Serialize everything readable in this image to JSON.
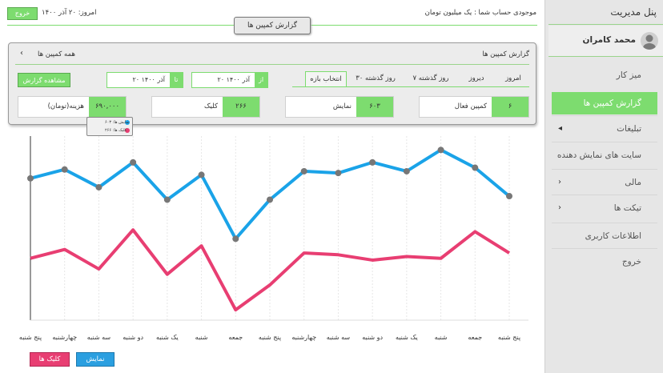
{
  "header": {
    "logout": "خروج",
    "today": "امروز: ۲۰ آذر ۱۴۰۰",
    "balance": "موجودی حساب شما : یک میلیون تومان",
    "tab": "گزارش کمپین ها"
  },
  "sidebar": {
    "title": "پنل مدیریت",
    "user": "محمد کامران",
    "items": [
      {
        "label": "میز کار",
        "arrow": ""
      },
      {
        "label": "گزارش کمپین ها",
        "arrow": ""
      },
      {
        "label": "تبلیغات",
        "arrow": "◂"
      },
      {
        "label": "سایت های نمایش دهنده",
        "arrow": ""
      },
      {
        "label": "مالی",
        "arrow": "›"
      },
      {
        "label": "تیکت ها",
        "arrow": "›"
      },
      {
        "label": "اطلاعات کاربری",
        "arrow": ""
      },
      {
        "label": "خروج",
        "arrow": ""
      }
    ]
  },
  "panel": {
    "title": "گزارش کمپین ها",
    "all_campaigns": "همه کمپین ها",
    "chevron": "‹",
    "ranges": [
      "امروز",
      "دیروز",
      "۷ روز گذشته",
      "۳۰ روز گذشته",
      "انتخاب بازه"
    ],
    "from_label": "از",
    "from_value": "۲۰ آذر ۱۴۰۰",
    "to_label": "تا",
    "to_value": "۲۰ آذر ۱۴۰۰",
    "view_button": "مشاهده گزارش",
    "stats": [
      {
        "label": "کمپین فعال",
        "value": "۶"
      },
      {
        "label": "نمایش",
        "value": "۶۰۳"
      },
      {
        "label": "کلیک",
        "value": "۲۶۶"
      },
      {
        "label": "هزینه(تومان)",
        "value": "۶۹۰,۰۰۰"
      }
    ]
  },
  "tooltip": {
    "impressions": "نمایش ها: ۶۰۳",
    "clicks": "کلیک ها: ۲۶۶"
  },
  "colors": {
    "accent": "#7ddc6f",
    "impressions": "#1aa3e8",
    "clicks": "#e83e72"
  },
  "chart_data": {
    "type": "line",
    "categories": [
      "پنج شنبه",
      "جمعه",
      "شنبه",
      "یک شنبه",
      "دو شنبه",
      "سه شنبه",
      "چهارشنبه",
      "پنج شنبه",
      "جمعه",
      "شنبه",
      "یک شنبه",
      "دو شنبه",
      "سه شنبه",
      "چهارشنبه",
      "پنج شنبه"
    ],
    "series": [
      {
        "name": "نمایش",
        "values": [
          68,
          84,
          94,
          82,
          87,
          81,
          82,
          66,
          44,
          80,
          66,
          87,
          73,
          83,
          78
        ]
      },
      {
        "name": "کلیک ها",
        "values": [
          36,
          48,
          33,
          34,
          32,
          35,
          36,
          18,
          4,
          40,
          24,
          49,
          27,
          38,
          33
        ]
      }
    ],
    "ylim": [
      0,
      100
    ],
    "grid": "vertical"
  },
  "legend": {
    "clicks": "کلیک ها",
    "impressions": "نمایش"
  }
}
